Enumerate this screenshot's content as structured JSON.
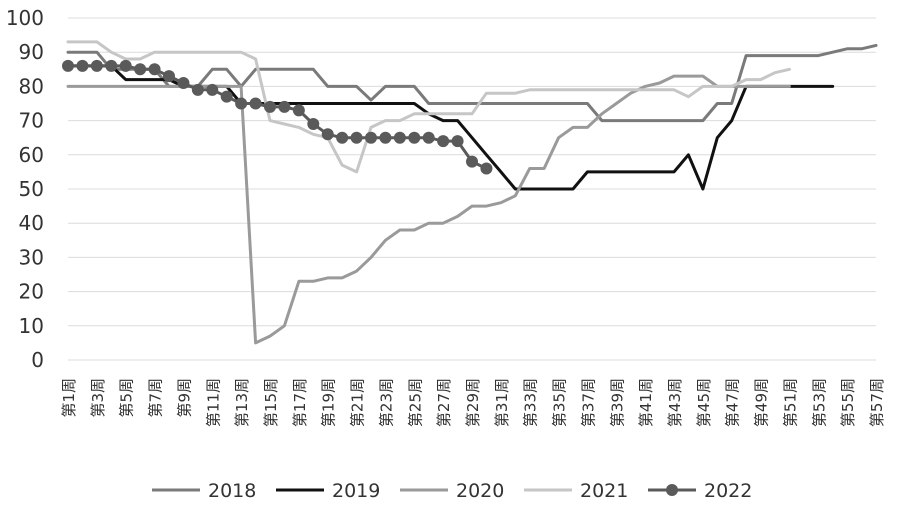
{
  "chart_data": {
    "type": "line",
    "title": "",
    "xlabel": "",
    "ylabel": "",
    "ylim": [
      0,
      100
    ],
    "yticks": [
      0,
      10,
      20,
      30,
      40,
      50,
      60,
      70,
      80,
      90,
      100
    ],
    "grid": true,
    "legend_position": "bottom",
    "x": [
      1,
      2,
      3,
      4,
      5,
      6,
      7,
      8,
      9,
      10,
      11,
      12,
      13,
      14,
      15,
      16,
      17,
      18,
      19,
      20,
      21,
      22,
      23,
      24,
      25,
      26,
      27,
      28,
      29,
      30,
      31,
      32,
      33,
      34,
      35,
      36,
      37,
      38,
      39,
      40,
      41,
      42,
      43,
      44,
      45,
      46,
      47,
      48,
      49,
      50,
      51,
      52,
      53,
      54,
      55,
      56,
      57
    ],
    "x_tick_labels": [
      "第1周",
      "第3周",
      "第5周",
      "第7周",
      "第9周",
      "第11周",
      "第13周",
      "第15周",
      "第17周",
      "第19周",
      "第21周",
      "第23周",
      "第25周",
      "第27周",
      "第29周",
      "第31周",
      "第33周",
      "第35周",
      "第37周",
      "第39周",
      "第41周",
      "第43周",
      "第45周",
      "第47周",
      "第49周",
      "第51周",
      "第53周",
      "第55周",
      "第57周"
    ],
    "series": [
      {
        "name": "2018",
        "color": "#7a7a7a",
        "marker": false,
        "values": [
          90,
          90,
          90,
          85,
          85,
          85,
          85,
          80,
          80,
          80,
          85,
          85,
          80,
          85,
          85,
          85,
          85,
          85,
          80,
          80,
          80,
          76,
          80,
          80,
          80,
          75,
          75,
          75,
          75,
          75,
          75,
          75,
          75,
          75,
          75,
          75,
          75,
          70,
          70,
          70,
          70,
          70,
          70,
          70,
          70,
          75,
          75,
          89,
          89,
          89,
          89,
          89,
          89,
          90,
          91,
          91,
          92
        ]
      },
      {
        "name": "2019",
        "color": "#111111",
        "marker": false,
        "values": [
          86,
          86,
          86,
          86,
          82,
          82,
          82,
          82,
          80,
          80,
          80,
          80,
          75,
          75,
          75,
          75,
          75,
          75,
          75,
          75,
          75,
          75,
          75,
          75,
          75,
          72,
          70,
          70,
          65,
          60,
          55,
          50,
          50,
          50,
          50,
          50,
          55,
          55,
          55,
          55,
          55,
          55,
          55,
          60,
          50,
          65,
          70,
          80,
          80,
          80,
          80,
          80,
          80,
          80,
          null,
          null,
          null
        ]
      },
      {
        "name": "2020",
        "color": "#9a9a9a",
        "marker": false,
        "values": [
          80,
          80,
          80,
          80,
          80,
          80,
          80,
          80,
          80,
          80,
          80,
          80,
          80,
          5,
          7,
          10,
          23,
          23,
          24,
          24,
          26,
          30,
          35,
          38,
          38,
          40,
          40,
          42,
          45,
          45,
          46,
          48,
          56,
          56,
          65,
          68,
          68,
          72,
          75,
          78,
          80,
          81,
          83,
          83,
          83,
          80,
          80,
          80,
          80,
          80,
          80,
          null,
          null,
          null,
          null,
          null,
          null
        ]
      },
      {
        "name": "2021",
        "color": "#c6c6c6",
        "marker": false,
        "values": [
          93,
          93,
          93,
          90,
          88,
          88,
          90,
          90,
          90,
          90,
          90,
          90,
          90,
          88,
          70,
          69,
          68,
          66,
          65,
          57,
          55,
          68,
          70,
          70,
          72,
          72,
          72,
          72,
          72,
          78,
          78,
          78,
          79,
          79,
          79,
          79,
          79,
          79,
          79,
          79,
          79,
          79,
          79,
          77,
          80,
          80,
          80,
          82,
          82,
          84,
          85,
          null,
          null,
          null,
          null,
          null,
          null
        ]
      },
      {
        "name": "2022",
        "color": "#5a5a5a",
        "marker": true,
        "values": [
          86,
          86,
          86,
          86,
          86,
          85,
          85,
          83,
          81,
          79,
          79,
          77,
          75,
          75,
          74,
          74,
          73,
          69,
          66,
          65,
          65,
          65,
          65,
          65,
          65,
          65,
          64,
          64,
          58,
          56,
          null,
          null,
          null,
          null,
          null,
          null,
          null,
          null,
          null,
          null,
          null,
          null,
          null,
          null,
          null,
          null,
          null,
          null,
          null,
          null,
          null,
          null,
          null,
          null,
          null,
          null,
          null
        ]
      }
    ]
  }
}
